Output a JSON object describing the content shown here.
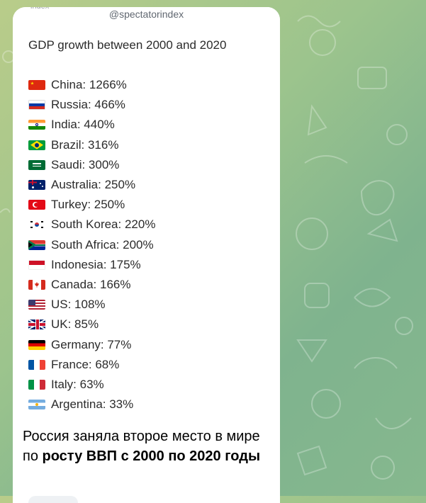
{
  "post": {
    "handle": "@spectatorindex",
    "handle_clipped": "index",
    "title": "GDP growth between 2000 and 2020",
    "items": [
      {
        "label": "China: 1266%",
        "flag": "china-flag-icon"
      },
      {
        "label": "Russia: 466%",
        "flag": "russia-flag-icon"
      },
      {
        "label": "India: 440%",
        "flag": "india-flag-icon"
      },
      {
        "label": "Brazil: 316%",
        "flag": "brazil-flag-icon"
      },
      {
        "label": "Saudi: 300%",
        "flag": "saudi-flag-icon"
      },
      {
        "label": "Australia: 250%",
        "flag": "australia-flag-icon"
      },
      {
        "label": "Turkey: 250%",
        "flag": "turkey-flag-icon"
      },
      {
        "label": "South Korea: 220%",
        "flag": "south-korea-flag-icon"
      },
      {
        "label": "South Africa: 200%",
        "flag": "south-africa-flag-icon"
      },
      {
        "label": "Indonesia: 175%",
        "flag": "indonesia-flag-icon"
      },
      {
        "label": "Canada: 166%",
        "flag": "canada-flag-icon"
      },
      {
        "label": "US: 108%",
        "flag": "us-flag-icon"
      },
      {
        "label": "UK: 85%",
        "flag": "uk-flag-icon"
      },
      {
        "label": "Germany: 77%",
        "flag": "germany-flag-icon"
      },
      {
        "label": "France: 68%",
        "flag": "france-flag-icon"
      },
      {
        "label": "Italy: 63%",
        "flag": "italy-flag-icon"
      },
      {
        "label": "Argentina: 33%",
        "flag": "argentina-flag-icon"
      }
    ]
  },
  "caption": {
    "part1": "Россия заняла второе место в мире по ",
    "part2": "росту ВВП с 2000 по 2020 годы"
  },
  "colors": {
    "bubble": "#ffffff",
    "text": "#2b2b2b",
    "chat_background": "#9cc48d"
  }
}
